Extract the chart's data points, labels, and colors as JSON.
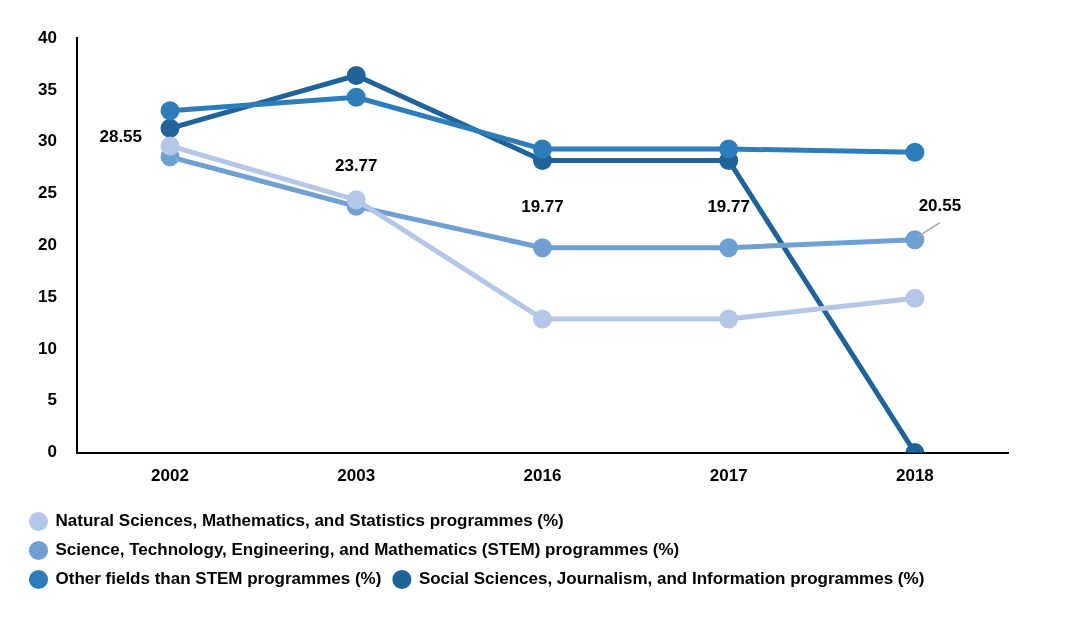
{
  "chart_data": {
    "type": "line",
    "categories": [
      "2002",
      "2003",
      "2016",
      "2017",
      "2018"
    ],
    "ylim": [
      0,
      40
    ],
    "yticks": [
      0,
      5,
      10,
      15,
      20,
      25,
      30,
      35,
      40
    ],
    "grid": false,
    "legend": "bottom",
    "marker": "circle",
    "line_style": "solid",
    "series": [
      {
        "name": "Natural Sciences, Mathematics, and Statistics programmes (%)",
        "color": "#b4c7e7",
        "values": [
          29.6,
          24.4,
          12.9,
          12.9,
          14.9
        ]
      },
      {
        "name": "Science, Technology, Engineering, and Mathematics (STEM) programmes (%)",
        "color": "#6fa0d3",
        "values": [
          28.55,
          23.77,
          19.77,
          19.77,
          20.55
        ],
        "value_labels": [
          "28.55",
          "23.77",
          "19.77",
          "19.77",
          "20.55"
        ]
      },
      {
        "name": "Other fields than STEM programmes (%)",
        "color": "#2e7dbb",
        "values": [
          33.0,
          34.3,
          29.3,
          29.3,
          29.0
        ]
      },
      {
        "name": "Social Sciences, Journalism, and Information programmes (%)",
        "color": "#1f6399",
        "values": [
          31.3,
          36.4,
          28.2,
          28.2,
          0
        ]
      }
    ]
  }
}
